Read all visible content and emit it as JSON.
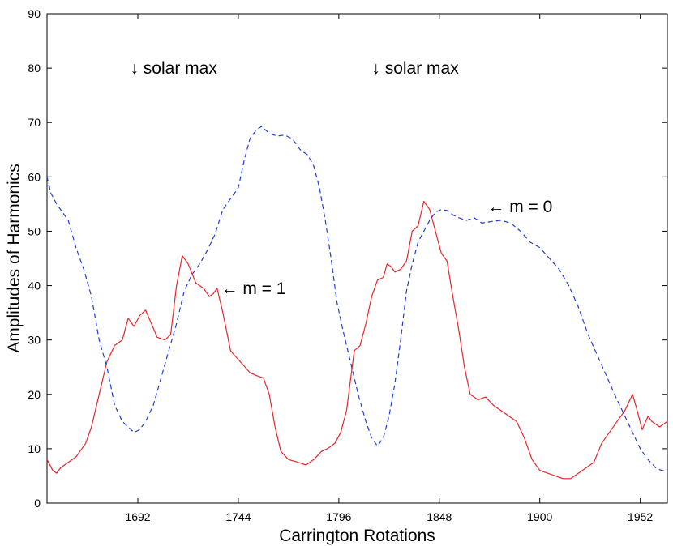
{
  "chart_data": {
    "type": "line",
    "title": "",
    "xlabel": "Carrington Rotations",
    "ylabel": "Amplitudes of Harmonics",
    "xlim": [
      1645,
      1966
    ],
    "ylim": [
      0,
      90
    ],
    "x_ticks": [
      1692,
      1744,
      1796,
      1848,
      1900,
      1952
    ],
    "y_ticks": [
      0,
      10,
      20,
      30,
      40,
      50,
      60,
      70,
      80,
      90
    ],
    "grid": false,
    "series": [
      {
        "name": "m = 1",
        "color": "#e8262a",
        "dash": "solid",
        "points": [
          [
            1645,
            8
          ],
          [
            1648,
            6
          ],
          [
            1650,
            5.5
          ],
          [
            1652,
            6.5
          ],
          [
            1656,
            7.5
          ],
          [
            1660,
            8.5
          ],
          [
            1665,
            11
          ],
          [
            1668,
            14
          ],
          [
            1672,
            20
          ],
          [
            1676,
            26
          ],
          [
            1680,
            29
          ],
          [
            1684,
            30
          ],
          [
            1687,
            34
          ],
          [
            1690,
            32.5
          ],
          [
            1693,
            34.5
          ],
          [
            1696,
            35.5
          ],
          [
            1699,
            33
          ],
          [
            1702,
            30.5
          ],
          [
            1706,
            30
          ],
          [
            1709,
            31
          ],
          [
            1712,
            40
          ],
          [
            1715,
            45.5
          ],
          [
            1718,
            44
          ],
          [
            1722,
            40.5
          ],
          [
            1726,
            39.5
          ],
          [
            1729,
            38
          ],
          [
            1731,
            38.5
          ],
          [
            1733,
            39.5
          ],
          [
            1736,
            35
          ],
          [
            1740,
            28
          ],
          [
            1745,
            26
          ],
          [
            1750,
            24
          ],
          [
            1753,
            23.5
          ],
          [
            1757,
            23
          ],
          [
            1760,
            20
          ],
          [
            1763,
            14
          ],
          [
            1766,
            9.5
          ],
          [
            1770,
            8
          ],
          [
            1775,
            7.5
          ],
          [
            1779,
            7
          ],
          [
            1783,
            8
          ],
          [
            1787,
            9.5
          ],
          [
            1790,
            10
          ],
          [
            1794,
            11
          ],
          [
            1797,
            13
          ],
          [
            1800,
            17
          ],
          [
            1804,
            28
          ],
          [
            1807,
            29
          ],
          [
            1810,
            33
          ],
          [
            1813,
            38
          ],
          [
            1816,
            41
          ],
          [
            1819,
            41.5
          ],
          [
            1821,
            44
          ],
          [
            1823,
            43.5
          ],
          [
            1825,
            42.5
          ],
          [
            1828,
            43
          ],
          [
            1831,
            44.5
          ],
          [
            1834,
            50
          ],
          [
            1837,
            51
          ],
          [
            1840,
            55.5
          ],
          [
            1843,
            54
          ],
          [
            1846,
            50
          ],
          [
            1849,
            46
          ],
          [
            1852,
            44.5
          ],
          [
            1855,
            38
          ],
          [
            1858,
            32
          ],
          [
            1861,
            25
          ],
          [
            1864,
            20
          ],
          [
            1868,
            19
          ],
          [
            1872,
            19.5
          ],
          [
            1876,
            18
          ],
          [
            1880,
            17
          ],
          [
            1884,
            16
          ],
          [
            1888,
            15
          ],
          [
            1892,
            12
          ],
          [
            1896,
            8
          ],
          [
            1900,
            6
          ],
          [
            1904,
            5.5
          ],
          [
            1908,
            5
          ],
          [
            1912,
            4.5
          ],
          [
            1916,
            4.5
          ],
          [
            1920,
            5.5
          ],
          [
            1924,
            6.5
          ],
          [
            1928,
            7.5
          ],
          [
            1932,
            11
          ],
          [
            1936,
            13
          ],
          [
            1940,
            15
          ],
          [
            1944,
            17
          ],
          [
            1948,
            20
          ],
          [
            1950,
            17.5
          ],
          [
            1953,
            13.5
          ],
          [
            1956,
            16
          ],
          [
            1958,
            15
          ],
          [
            1962,
            14
          ],
          [
            1966,
            15
          ]
        ]
      },
      {
        "name": "m = 0",
        "color": "#1f3fd9",
        "dash": "dashed",
        "points": [
          [
            1645,
            60
          ],
          [
            1647,
            57
          ],
          [
            1650,
            55
          ],
          [
            1653,
            53.5
          ],
          [
            1656,
            52
          ],
          [
            1660,
            47
          ],
          [
            1664,
            43
          ],
          [
            1668,
            38
          ],
          [
            1672,
            30
          ],
          [
            1676,
            25
          ],
          [
            1680,
            18
          ],
          [
            1684,
            15
          ],
          [
            1687,
            14
          ],
          [
            1690,
            13
          ],
          [
            1693,
            13.5
          ],
          [
            1696,
            15
          ],
          [
            1700,
            18
          ],
          [
            1704,
            23
          ],
          [
            1708,
            28
          ],
          [
            1712,
            33
          ],
          [
            1716,
            39
          ],
          [
            1720,
            42
          ],
          [
            1724,
            44
          ],
          [
            1728,
            46.5
          ],
          [
            1732,
            49.5
          ],
          [
            1736,
            54
          ],
          [
            1740,
            56
          ],
          [
            1744,
            58
          ],
          [
            1747,
            63
          ],
          [
            1750,
            67
          ],
          [
            1753,
            68.5
          ],
          [
            1756,
            69.3
          ],
          [
            1760,
            68
          ],
          [
            1764,
            67.5
          ],
          [
            1768,
            67.7
          ],
          [
            1772,
            67
          ],
          [
            1776,
            65
          ],
          [
            1780,
            64
          ],
          [
            1783,
            62
          ],
          [
            1786,
            58
          ],
          [
            1789,
            52
          ],
          [
            1792,
            45
          ],
          [
            1795,
            37
          ],
          [
            1798,
            32
          ],
          [
            1802,
            26
          ],
          [
            1806,
            20
          ],
          [
            1810,
            15
          ],
          [
            1813,
            12
          ],
          [
            1816,
            10.5
          ],
          [
            1819,
            12
          ],
          [
            1822,
            16
          ],
          [
            1825,
            22
          ],
          [
            1828,
            30
          ],
          [
            1831,
            39
          ],
          [
            1834,
            44
          ],
          [
            1837,
            48
          ],
          [
            1840,
            50
          ],
          [
            1843,
            52
          ],
          [
            1846,
            53.5
          ],
          [
            1849,
            54
          ],
          [
            1852,
            53.8
          ],
          [
            1855,
            53
          ],
          [
            1858,
            52.5
          ],
          [
            1862,
            52
          ],
          [
            1866,
            52.5
          ],
          [
            1870,
            51.5
          ],
          [
            1875,
            51.8
          ],
          [
            1880,
            52
          ],
          [
            1885,
            51.5
          ],
          [
            1890,
            50
          ],
          [
            1895,
            48
          ],
          [
            1900,
            47
          ],
          [
            1905,
            45
          ],
          [
            1910,
            43
          ],
          [
            1915,
            40
          ],
          [
            1920,
            36
          ],
          [
            1925,
            31
          ],
          [
            1930,
            27
          ],
          [
            1935,
            23
          ],
          [
            1940,
            19
          ],
          [
            1944,
            16
          ],
          [
            1948,
            13
          ],
          [
            1952,
            10
          ],
          [
            1956,
            8
          ],
          [
            1960,
            6.5
          ],
          [
            1963,
            6
          ],
          [
            1966,
            6
          ]
        ]
      }
    ],
    "annotations": [
      {
        "text": "↓ solar max",
        "x": 1688,
        "y": 80
      },
      {
        "text": "↓ solar max",
        "x": 1813,
        "y": 80
      },
      {
        "text": "← m = 0",
        "x": 1873,
        "y": 54.5
      },
      {
        "text": "← m = 1",
        "x": 1735,
        "y": 39.5
      }
    ]
  }
}
